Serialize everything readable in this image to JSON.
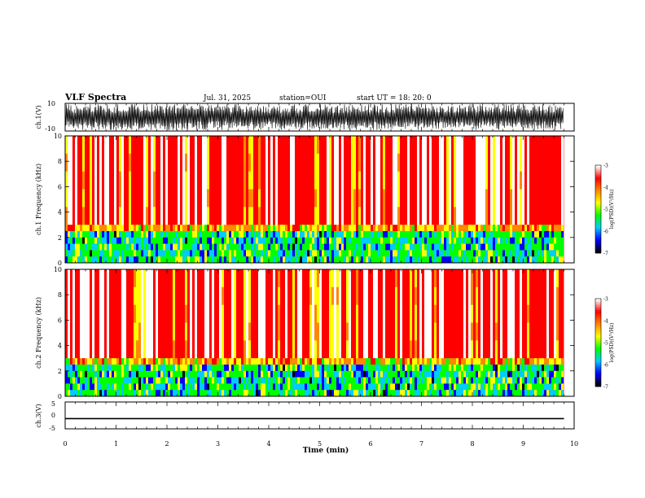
{
  "header": {
    "title": "VLF Spectra",
    "date": "Jul. 31, 2025",
    "station": "station=OUI",
    "start": "start UT =  18: 20: 0"
  },
  "colors": {
    "spectrum": [
      "#000000",
      "#0000ff",
      "#00ccff",
      "#00ff00",
      "#ffff00",
      "#ff8800",
      "#ff0000",
      "#ffffff"
    ],
    "waveform": "#000000"
  },
  "chart_data": [
    {
      "type": "line",
      "name": "ch1-waveform",
      "ylabel": "ch.1(V)",
      "ylim": [
        -10,
        10
      ],
      "yticks": [
        "10",
        "-10"
      ],
      "xlim": [
        0,
        10
      ],
      "description": "dense oscillating waveform, amplitude roughly -9 to 9 V"
    },
    {
      "type": "heatmap",
      "name": "ch1-spectrogram",
      "ylabel": "ch.1 Frequency (kHz)",
      "ylim": [
        0,
        10
      ],
      "yticks": [
        "0",
        "2",
        "4",
        "6",
        "8",
        "10"
      ],
      "xlim": [
        0,
        10
      ],
      "colorbar": {
        "label": "log(PSD)(V²/Hz)",
        "range": [
          -7,
          -3
        ],
        "ticks": [
          "-3",
          "-4",
          "-5",
          "-6",
          "-7"
        ]
      }
    },
    {
      "type": "heatmap",
      "name": "ch2-spectrogram",
      "ylabel": "ch.2 Frequency (kHz)",
      "ylim": [
        0,
        10
      ],
      "yticks": [
        "0",
        "2",
        "4",
        "6",
        "8",
        "10"
      ],
      "xlim": [
        0,
        10
      ],
      "colorbar": {
        "label": "log(PSD)(V²/Hz)",
        "range": [
          -7,
          -3
        ],
        "ticks": [
          "-3",
          "-4",
          "-5",
          "-6",
          "-7"
        ]
      }
    },
    {
      "type": "line",
      "name": "ch3-level",
      "ylabel": "ch.3(V)",
      "ylim": [
        -5,
        5
      ],
      "yticks": [
        "5",
        "0",
        "-5"
      ],
      "xlim": [
        0,
        10
      ],
      "x": [
        0,
        9.8
      ],
      "y": [
        -1.2,
        -1.2
      ]
    }
  ],
  "xaxis": {
    "label": "Time (min)",
    "ticks": [
      "0",
      "1",
      "2",
      "3",
      "4",
      "5",
      "6",
      "7",
      "8",
      "9",
      "10"
    ]
  }
}
